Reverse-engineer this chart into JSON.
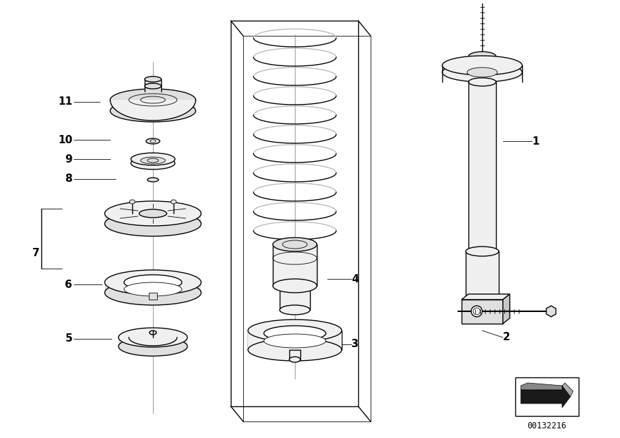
{
  "background_color": "#ffffff",
  "line_color": "#000000",
  "fill_light": "#f0f0f0",
  "fill_mid": "#e0e0e0",
  "fill_dark": "#c8c8c8",
  "figure_width": 9.0,
  "figure_height": 6.36,
  "dpi": 100,
  "diagram_id": "00132216",
  "lw_thin": 0.6,
  "lw_med": 1.0,
  "lw_thick": 1.5
}
